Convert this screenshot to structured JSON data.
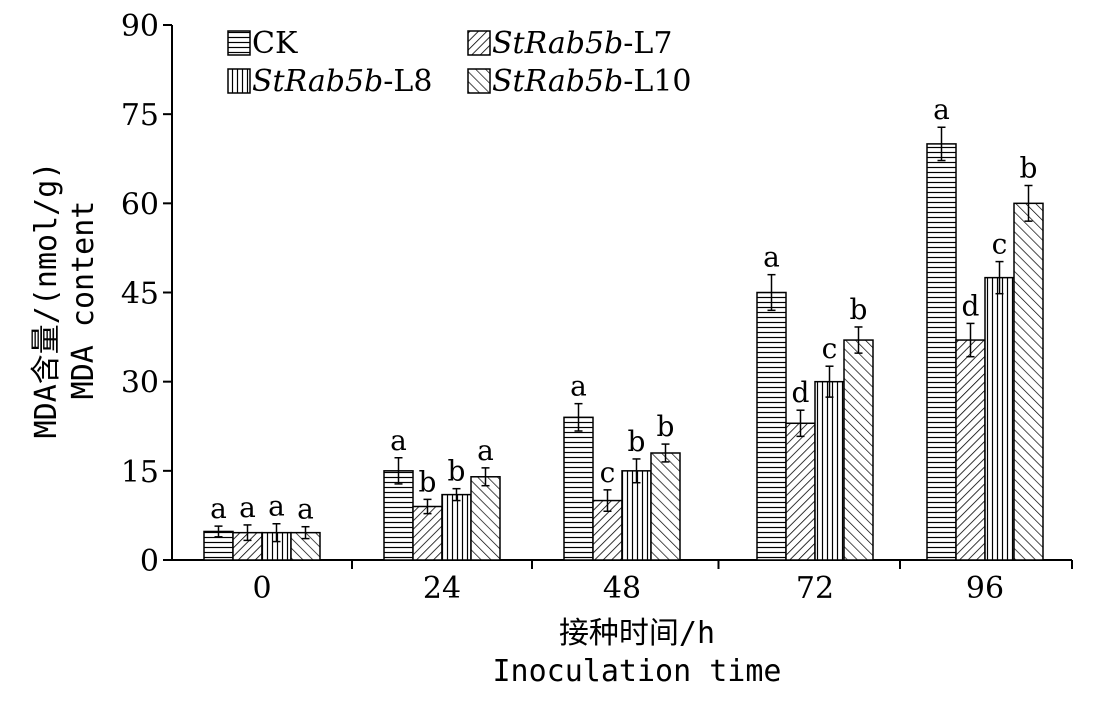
{
  "chart_data": {
    "type": "bar",
    "categories": [
      "0",
      "24",
      "48",
      "72",
      "96"
    ],
    "series": [
      {
        "name": "CK",
        "italic_prefix": "",
        "suffix": "CK",
        "pattern": "hstripes",
        "values": [
          4.8,
          15.0,
          24.0,
          45.0,
          70.0
        ],
        "errors": [
          0.9,
          2.2,
          2.3,
          3.0,
          2.8
        ],
        "letters": [
          "a",
          "a",
          "a",
          "a",
          "a"
        ]
      },
      {
        "name": "StRab5b-L7",
        "italic_prefix": "StRab5b",
        "suffix": "-L7",
        "pattern": "backdiag",
        "values": [
          4.6,
          9.0,
          10.0,
          23.0,
          37.0
        ],
        "errors": [
          1.3,
          1.2,
          1.8,
          2.2,
          2.8
        ],
        "letters": [
          "a",
          "b",
          "c",
          "d",
          "d"
        ]
      },
      {
        "name": "StRab5b-L8",
        "italic_prefix": "StRab5b",
        "suffix": "-L8",
        "pattern": "vstripes",
        "values": [
          4.6,
          11.0,
          15.0,
          30.0,
          47.5
        ],
        "errors": [
          1.5,
          1.0,
          2.0,
          2.6,
          2.7
        ],
        "letters": [
          "a",
          "b",
          "b",
          "c",
          "c"
        ]
      },
      {
        "name": "StRab5b-L10",
        "italic_prefix": "StRab5b",
        "suffix": "-L10",
        "pattern": "fwddiag",
        "values": [
          4.6,
          14.0,
          18.0,
          37.0,
          60.0
        ],
        "errors": [
          1.0,
          1.5,
          1.5,
          2.2,
          3.0
        ],
        "letters": [
          "a",
          "a",
          "b",
          "b",
          "b"
        ]
      }
    ],
    "ylim": [
      0,
      90
    ],
    "yticks": [
      "0",
      "15",
      "30",
      "45",
      "60",
      "75",
      "90"
    ],
    "ylabel_line1": "MDA含量/(nmol/g)",
    "ylabel_line2": "MDA content",
    "xlabel_line1": "接种时间/h",
    "xlabel_line2": "Inoculation time",
    "legend_position": "top-left",
    "grid": false
  }
}
